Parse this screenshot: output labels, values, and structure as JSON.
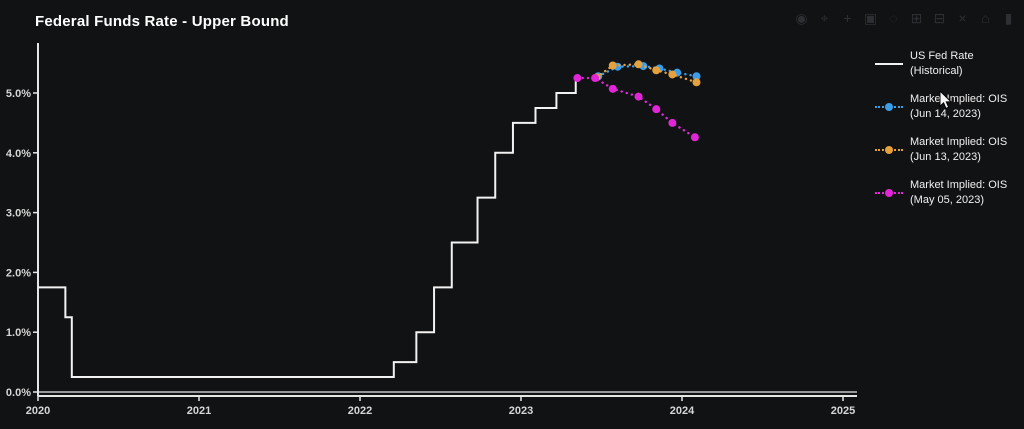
{
  "title": "Federal Funds Rate - Upper Bound",
  "colors": {
    "background": "#111214",
    "axis": "#e6e6e6",
    "tick_label": "#d6d6d6",
    "title_text": "#ffffff",
    "legend_text": "#f0f0f0",
    "historical": "#f2f2f2",
    "ois_jun14": "#3d9ee8",
    "ois_jun13": "#e5a13c",
    "ois_may05": "#e226d7"
  },
  "toolbar": {
    "icons": [
      {
        "name": "camera-icon",
        "glyph": "◉"
      },
      {
        "name": "zoom-icon",
        "glyph": "⌖"
      },
      {
        "name": "pan-icon",
        "glyph": "+"
      },
      {
        "name": "box-select-icon",
        "glyph": "▣"
      },
      {
        "name": "lasso-select-icon",
        "glyph": "◌"
      },
      {
        "name": "zoom-in-icon",
        "glyph": "⊞"
      },
      {
        "name": "zoom-out-icon",
        "glyph": "⊟"
      },
      {
        "name": "autoscale-icon",
        "glyph": "×"
      },
      {
        "name": "reset-axes-icon",
        "glyph": "⌂"
      },
      {
        "name": "logo-icon",
        "glyph": "▮"
      }
    ]
  },
  "legend": {
    "items": [
      {
        "id": "us-fed-rate",
        "line1": "US Fed Rate",
        "line2": "(Historical)",
        "color": "#f2f2f2",
        "style": "solid"
      },
      {
        "id": "ois-jun-14-2023",
        "line1": "Market Implied: OIS",
        "line2": "(Jun 14, 2023)",
        "color": "#3d9ee8",
        "style": "dotted"
      },
      {
        "id": "ois-jun-13-2023",
        "line1": "Market Implied: OIS",
        "line2": "(Jun 13, 2023)",
        "color": "#e5a13c",
        "style": "dotted"
      },
      {
        "id": "ois-may-05-2023",
        "line1": "Market Implied: OIS",
        "line2": "(May 05, 2023)",
        "color": "#e226d7",
        "style": "dotted"
      }
    ]
  },
  "chart_data": {
    "type": "line",
    "title": "Federal Funds Rate - Upper Bound",
    "xlabel": "",
    "ylabel": "",
    "x_ticks": [
      2020,
      2021,
      2022,
      2023,
      2024,
      2025
    ],
    "y_ticks": [
      "0.0%",
      "1.0%",
      "2.0%",
      "3.0%",
      "4.0%",
      "5.0%"
    ],
    "xlim": [
      2020,
      2025.09
    ],
    "ylim": [
      0,
      5.84
    ],
    "grid": false,
    "legend_position": "right",
    "series": [
      {
        "id": "us-fed-rate-historical",
        "name": "US Fed Rate (Historical)",
        "mode": "step",
        "color": "#f2f2f2",
        "points": [
          [
            2020.0,
            1.75
          ],
          [
            2020.17,
            1.25
          ],
          [
            2020.21,
            0.25
          ],
          [
            2022.21,
            0.5
          ],
          [
            2022.35,
            1.0
          ],
          [
            2022.46,
            1.75
          ],
          [
            2022.57,
            2.5
          ],
          [
            2022.73,
            3.25
          ],
          [
            2022.84,
            4.0
          ],
          [
            2022.95,
            4.5
          ],
          [
            2023.09,
            4.75
          ],
          [
            2023.22,
            5.0
          ],
          [
            2023.34,
            5.25
          ]
        ],
        "end_x": 2023.36
      },
      {
        "id": "ois-jun-14-2023",
        "name": "Market Implied: OIS (Jun 14, 2023)",
        "mode": "dotted-markers",
        "color": "#3d9ee8",
        "points": [
          [
            2023.48,
            5.28
          ],
          [
            2023.6,
            5.44
          ],
          [
            2023.76,
            5.45
          ],
          [
            2023.86,
            5.41
          ],
          [
            2023.97,
            5.34
          ],
          [
            2024.09,
            5.28
          ]
        ]
      },
      {
        "id": "ois-jun-13-2023",
        "name": "Market Implied: OIS (Jun 13, 2023)",
        "mode": "dotted-markers",
        "color": "#e5a13c",
        "points": [
          [
            2023.47,
            5.26
          ],
          [
            2023.57,
            5.46
          ],
          [
            2023.73,
            5.48
          ],
          [
            2023.84,
            5.38
          ],
          [
            2023.94,
            5.31
          ],
          [
            2024.09,
            5.18
          ]
        ]
      },
      {
        "id": "ois-may-05-2023",
        "name": "Market Implied: OIS (May 05, 2023)",
        "mode": "dotted-markers",
        "color": "#e226d7",
        "points": [
          [
            2023.35,
            5.25
          ],
          [
            2023.46,
            5.25
          ],
          [
            2023.57,
            5.07
          ],
          [
            2023.73,
            4.94
          ],
          [
            2023.84,
            4.73
          ],
          [
            2023.94,
            4.5
          ],
          [
            2024.08,
            4.26
          ]
        ]
      }
    ]
  }
}
